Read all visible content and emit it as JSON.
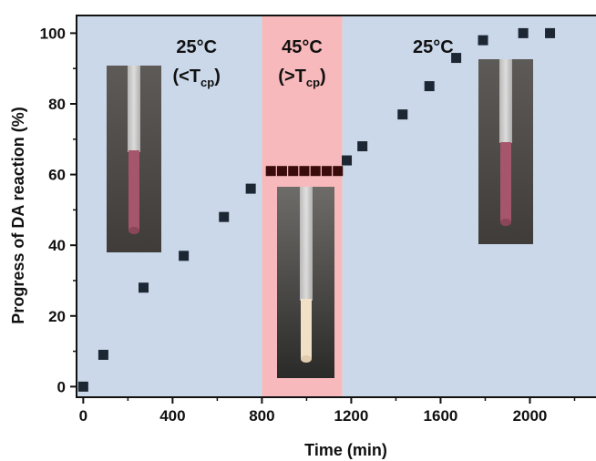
{
  "chart_data": {
    "type": "scatter",
    "xlabel": "Time (min)",
    "ylabel": "Progress of DA reaction (%)",
    "xlim": [
      -30,
      2300
    ],
    "ylim": [
      -3,
      105
    ],
    "xticks": [
      "0",
      "400",
      "800",
      "1200",
      "1600",
      "2000"
    ],
    "yticks": [
      "0",
      "20",
      "40",
      "60",
      "80",
      "100"
    ],
    "grid": false,
    "regions": [
      {
        "x_from": -30,
        "x_to": 800,
        "label": "25°C",
        "sub_prefix": "(<T",
        "sub_script": "cp",
        "sub_suffix": ")",
        "color": "#cad8ea"
      },
      {
        "x_from": 800,
        "x_to": 1160,
        "label": "45°C",
        "sub_prefix": "(>T",
        "sub_script": "cp",
        "sub_suffix": ")",
        "color": "#f7b9bb"
      },
      {
        "x_from": 1160,
        "x_to": 2300,
        "label": "25°C",
        "color": "#cad8ea"
      }
    ],
    "series": [
      {
        "marker_color": "#1c2733",
        "points": [
          [
            0,
            0
          ],
          [
            90,
            9
          ],
          [
            270,
            28
          ],
          [
            450,
            37
          ],
          [
            630,
            48
          ],
          [
            750,
            56
          ],
          [
            1180,
            64
          ],
          [
            1250,
            68
          ],
          [
            1430,
            77
          ],
          [
            1550,
            85
          ],
          [
            1670,
            93
          ],
          [
            1790,
            98
          ],
          [
            1970,
            100
          ],
          [
            2090,
            100
          ]
        ]
      },
      {
        "marker_color": "#3a0b0b",
        "points": [
          [
            840,
            61
          ],
          [
            890,
            61
          ],
          [
            940,
            61
          ],
          [
            990,
            61
          ],
          [
            1040,
            61
          ],
          [
            1090,
            61
          ],
          [
            1140,
            61
          ]
        ]
      }
    ]
  }
}
